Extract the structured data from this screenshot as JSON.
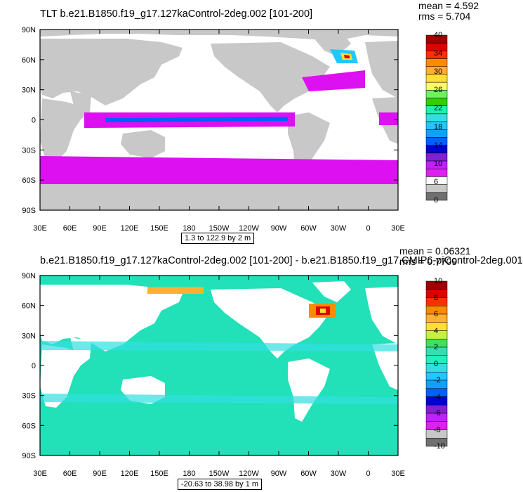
{
  "panels": [
    {
      "title": "TLT b.e21.B1850.f19_g17.127kaControl-2deg.002 [101-200]",
      "mean": "mean = 4.592",
      "rms": "rms = 5.704",
      "range_label": "1.3 to 122.9 by 2 m",
      "colorbar_labels": [
        "40",
        "34",
        "30",
        "26",
        "22",
        "18",
        "14",
        "10",
        "6",
        "0"
      ],
      "colorbar_colors": [
        "#a00000",
        "#e00000",
        "#ff3000",
        "#ff8a00",
        "#ffb030",
        "#ffe030",
        "#ffff60",
        "#70f060",
        "#30d000",
        "#20f0b0",
        "#30e0e0",
        "#20c8ff",
        "#10a0ff",
        "#0060ff",
        "#0000d0",
        "#8020d0",
        "#c020ff",
        "#e020f0",
        "#ffffff",
        "#c8c8c8",
        "#707070"
      ]
    },
    {
      "title": "b.e21.B1850.f19_g17.127kaControl-2deg.002 [101-200] - b.e21.B1850.f19_g17.CMIP6-piControl-2deg.001",
      "mean": "mean = 0.06321",
      "rms": "rms = 0.7709",
      "range_label": "-20.63 to 38.98 by 1 m",
      "colorbar_labels": [
        "10",
        "8",
        "6",
        "4",
        "2",
        "0",
        "-2",
        "-4",
        "-6",
        "-8",
        "-10"
      ],
      "colorbar_colors": [
        "#a00000",
        "#e00000",
        "#ff3000",
        "#ff8a00",
        "#ffb030",
        "#ffe030",
        "#c8f040",
        "#40e060",
        "#30e0b0",
        "#20f0c0",
        "#30e0e0",
        "#20c8ff",
        "#10a0ff",
        "#0060ff",
        "#0000d0",
        "#8020d0",
        "#c020ff",
        "#e020f0",
        "#c8c8c8",
        "#707070"
      ]
    }
  ],
  "axes": {
    "lat_labels": [
      "90N",
      "60N",
      "30N",
      "0",
      "30S",
      "60S",
      "90S"
    ],
    "lon_labels": [
      "30E",
      "60E",
      "90E",
      "120E",
      "150E",
      "180",
      "150W",
      "120W",
      "90W",
      "60W",
      "30W",
      "0",
      "30E"
    ]
  },
  "colors": {
    "land": "#c8c8c8",
    "ocean_top": "#dc10f0",
    "ocean_bottom": "#22e0b8"
  }
}
